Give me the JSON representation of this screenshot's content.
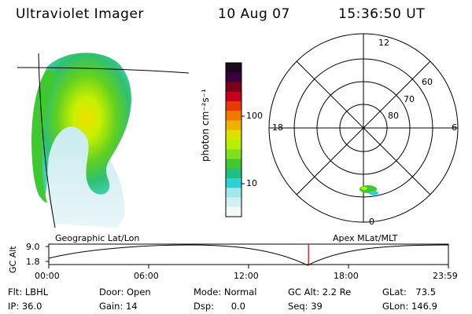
{
  "header": {
    "title": "Ultraviolet Imager",
    "date": "10 Aug 07",
    "time": "15:36:50 UT"
  },
  "colorbar": {
    "unit_label": "photon cm⁻²s⁻¹",
    "tick_labels": [
      "100",
      "10"
    ],
    "colors": [
      "#1a0a1e",
      "#3a0040",
      "#7a0018",
      "#c4001a",
      "#e63a00",
      "#f07a00",
      "#f0b000",
      "#e0e000",
      "#b8f000",
      "#80e020",
      "#40c830",
      "#20c080",
      "#30d0d8",
      "#a0e8ec",
      "#d0f0f4",
      "#f4fafa"
    ]
  },
  "polar_plot": {
    "top_label": "12",
    "left_label": "18",
    "right_label": "6",
    "bottom_label": "0",
    "ring_labels": [
      "60",
      "70",
      "80"
    ]
  },
  "timeline": {
    "y_axis_label": "GC Alt",
    "y_ticks": [
      "9.0",
      "1.8"
    ],
    "left_caption": "Geographic Lat/Lon",
    "right_caption": "Apex MLat/MLT",
    "x_ticks": [
      "00:00",
      "06:00",
      "12:00",
      "18:00",
      "23:59"
    ],
    "marker_color": "#cc0000",
    "current_time_fraction": 0.65
  },
  "status": {
    "flt_label": "Flt:",
    "flt_value": "LBHL",
    "ip_label": "IP:",
    "ip_value": "36.0",
    "door_label": "Door:",
    "door_value": "Open",
    "gain_label": "Gain:",
    "gain_value": "14",
    "mode_label": "Mode:",
    "mode_value": "Normal",
    "dsp_label": "Dsp:",
    "dsp_value": "0.0",
    "gcalt_label": "GC Alt:",
    "gcalt_value": "2.2 Re",
    "seq_label": "Seq:",
    "seq_value": "39",
    "glat_label": "GLat:",
    "glat_value": "73.5",
    "glon_label": "GLon:",
    "glon_value": "146.9"
  }
}
